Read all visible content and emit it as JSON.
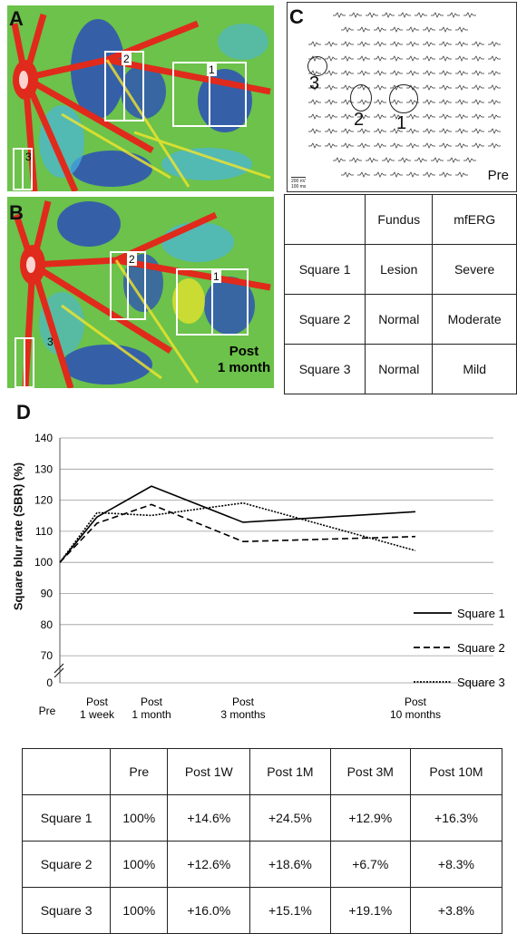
{
  "panels": {
    "A": {
      "label": "A",
      "squares": [
        "1",
        "2",
        "3"
      ]
    },
    "B": {
      "label": "B",
      "squares": [
        "1",
        "2",
        "3"
      ],
      "caption_line1": "Post",
      "caption_line2": "1 month"
    },
    "C": {
      "label": "C",
      "mferg_state": "Pre",
      "scale_line1": "200 nV",
      "scale_line2": "100 ms",
      "circle_labels": [
        "3",
        "2",
        "1"
      ]
    },
    "D": {
      "label": "D"
    }
  },
  "table_c": {
    "headers": [
      "",
      "Fundus",
      "mfERG"
    ],
    "rows": [
      [
        "Square 1",
        "Lesion",
        "Severe"
      ],
      [
        "Square 2",
        "Normal",
        "Moderate"
      ],
      [
        "Square 3",
        "Normal",
        "Mild"
      ]
    ]
  },
  "table_d": {
    "headers": [
      "",
      "Pre",
      "Post 1W",
      "Post 1M",
      "Post 3M",
      "Post 10M"
    ],
    "rows": [
      [
        "Square 1",
        "100%",
        "+14.6%",
        "+24.5%",
        "+12.9%",
        "+16.3%"
      ],
      [
        "Square 2",
        "100%",
        "+12.6%",
        "+18.6%",
        "+6.7%",
        "+8.3%"
      ],
      [
        "Square 3",
        "100%",
        "+16.0%",
        "+15.1%",
        "+19.1%",
        "+3.8%"
      ]
    ]
  },
  "colors": {
    "fundus_green": "#6cc24a",
    "fundus_blue": "#2b4fb8",
    "fundus_red": "#e02a1c",
    "fundus_yellow": "#f2e52a",
    "fundus_cyan": "#49b5e0"
  },
  "chart_data": {
    "type": "line",
    "title": "",
    "xlabel": "",
    "ylabel": "Square blur rate (SBR) (%)",
    "x_tick_labels": [
      [
        "Pre"
      ],
      [
        "Post",
        "1 week"
      ],
      [
        "Post",
        "1 month"
      ],
      [
        "Post",
        "3 months"
      ],
      [
        "Post",
        "10 months"
      ]
    ],
    "x_days": [
      0,
      7,
      30,
      90,
      300
    ],
    "y_ticks": [
      0,
      70,
      80,
      90,
      100,
      110,
      120,
      130,
      140
    ],
    "ylim": [
      70,
      140
    ],
    "axis_break": true,
    "grid": true,
    "legend_placement": "right",
    "series": [
      {
        "name": "Square 1",
        "style": "solid",
        "values": [
          100,
          114.6,
          124.5,
          112.9,
          116.3
        ]
      },
      {
        "name": "Square 2",
        "style": "dashed",
        "values": [
          100,
          112.6,
          118.6,
          106.7,
          108.3
        ]
      },
      {
        "name": "Square 3",
        "style": "dotted",
        "values": [
          100,
          116.0,
          115.1,
          119.1,
          103.8
        ]
      }
    ]
  }
}
